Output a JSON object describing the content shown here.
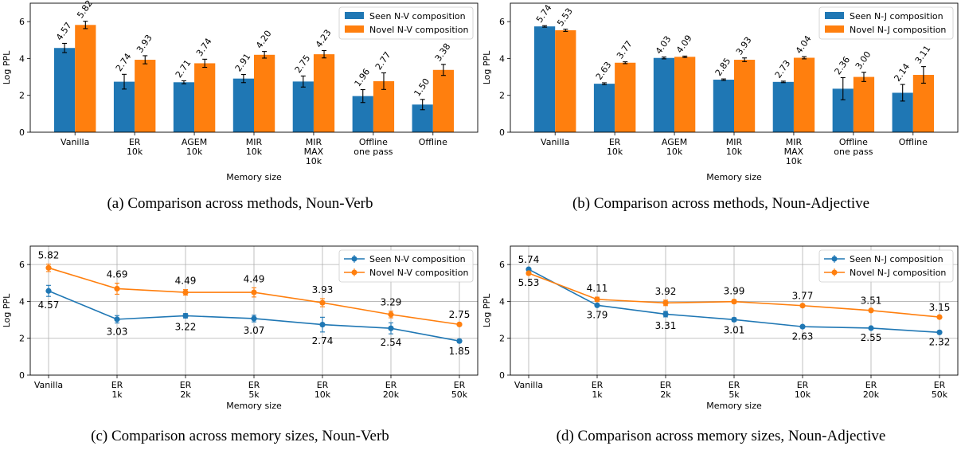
{
  "captions": [
    "(a) Comparison across methods, Noun-Verb",
    "(b) Comparison across methods, Noun-Adjective",
    "(c) Comparison across memory sizes, Noun-Verb",
    "(d) Comparison across memory sizes, Noun-Adjective"
  ],
  "colors": {
    "seen": "#1f77b4",
    "novel": "#ff7f0e"
  },
  "chart_data": [
    {
      "type": "bar",
      "panel": "a",
      "categories": [
        "Vanilla",
        "ER\n10k",
        "AGEM\n10k",
        "MIR\n10k",
        "MIR\nMAX\n10k",
        "Offline\none pass",
        "Offline"
      ],
      "xlabel": "Memory size",
      "ylabel": "Log PPL",
      "ylim": [
        0,
        7
      ],
      "yticks": [
        0,
        2,
        4,
        6
      ],
      "legend_position": "top-right",
      "series": [
        {
          "name": "Seen N-V composition",
          "values": [
            4.57,
            2.74,
            2.71,
            2.91,
            2.75,
            1.96,
            1.5
          ],
          "errors": [
            0.25,
            0.4,
            0.08,
            0.22,
            0.3,
            0.35,
            0.28
          ],
          "labels": [
            "4.57",
            "2.74",
            "2.71",
            "2.91",
            "2.75",
            "1.96",
            "1.50"
          ]
        },
        {
          "name": "Novel N-V composition",
          "values": [
            5.82,
            3.93,
            3.74,
            4.2,
            4.23,
            2.77,
            3.38
          ],
          "errors": [
            0.2,
            0.22,
            0.22,
            0.18,
            0.2,
            0.45,
            0.3
          ],
          "labels": [
            "5.82",
            "3.93",
            "3.74",
            "4.20",
            "4.23",
            "2.77",
            "3.38"
          ]
        }
      ]
    },
    {
      "type": "bar",
      "panel": "b",
      "categories": [
        "Vanilla",
        "ER\n10k",
        "AGEM\n10k",
        "MIR\n10k",
        "MIR\nMAX\n10k",
        "Offline\none pass",
        "Offline"
      ],
      "xlabel": "Memory size",
      "ylabel": "Log PPL",
      "ylim": [
        0,
        7
      ],
      "yticks": [
        0,
        2,
        4,
        6
      ],
      "legend_position": "top-right",
      "series": [
        {
          "name": "Seen N-J composition",
          "values": [
            5.74,
            2.63,
            4.03,
            2.85,
            2.73,
            2.36,
            2.14
          ],
          "errors": [
            0.04,
            0.05,
            0.05,
            0.04,
            0.04,
            0.6,
            0.45
          ],
          "labels": [
            "5.74",
            "2.63",
            "4.03",
            "2.85",
            "2.73",
            "2.36",
            "2.14"
          ]
        },
        {
          "name": "Novel N-J composition",
          "values": [
            5.53,
            3.77,
            4.09,
            3.93,
            4.04,
            3.0,
            3.11
          ],
          "errors": [
            0.06,
            0.05,
            0.04,
            0.1,
            0.06,
            0.25,
            0.45
          ],
          "labels": [
            "5.53",
            "3.77",
            "4.09",
            "3.93",
            "4.04",
            "3.00",
            "3.11"
          ]
        }
      ]
    },
    {
      "type": "line",
      "panel": "c",
      "categories": [
        "Vanilla",
        "ER\n1k",
        "ER\n2k",
        "ER\n5k",
        "ER\n10k",
        "ER\n20k",
        "ER\n50k"
      ],
      "xlabel": "Memory size",
      "ylabel": "Log PPL",
      "ylim": [
        0,
        7
      ],
      "yticks": [
        0,
        2,
        4,
        6
      ],
      "grid": true,
      "legend_position": "top-right",
      "series": [
        {
          "name": "Seen N-V composition",
          "values": [
            4.57,
            3.03,
            3.22,
            3.07,
            2.74,
            2.54,
            1.85
          ],
          "errors": [
            0.3,
            0.2,
            0.12,
            0.18,
            0.4,
            0.3,
            0.08
          ],
          "labels": [
            "4.57",
            "3.03",
            "3.22",
            "3.07",
            "2.74",
            "2.54",
            "1.85"
          ],
          "label_side": "below"
        },
        {
          "name": "Novel N-V composition",
          "values": [
            5.82,
            4.69,
            4.49,
            4.49,
            3.93,
            3.29,
            2.75
          ],
          "errors": [
            0.2,
            0.3,
            0.15,
            0.25,
            0.22,
            0.18,
            0.05
          ],
          "labels": [
            "5.82",
            "4.69",
            "4.49",
            "4.49",
            "3.93",
            "3.29",
            "2.75"
          ],
          "label_side": "above"
        }
      ]
    },
    {
      "type": "line",
      "panel": "d",
      "categories": [
        "Vanilla",
        "ER\n1k",
        "ER\n2k",
        "ER\n5k",
        "ER\n10k",
        "ER\n20k",
        "ER\n50k"
      ],
      "xlabel": "Memory size",
      "ylabel": "Log PPL",
      "ylim": [
        0,
        7
      ],
      "yticks": [
        0,
        2,
        4,
        6
      ],
      "grid": true,
      "legend_position": "top-right",
      "series": [
        {
          "name": "Seen N-J composition",
          "values": [
            5.74,
            3.79,
            3.31,
            3.01,
            2.63,
            2.55,
            2.32
          ],
          "errors": [
            0.05,
            0.05,
            0.15,
            0.1,
            0.05,
            0.05,
            0.05
          ],
          "labels": [
            "5.74",
            "3.79",
            "3.31",
            "3.01",
            "2.63",
            "2.55",
            "2.32"
          ],
          "label_side": "mixed"
        },
        {
          "name": "Novel N-J composition",
          "values": [
            5.53,
            4.11,
            3.92,
            3.99,
            3.77,
            3.51,
            3.15
          ],
          "errors": [
            0.05,
            0.12,
            0.15,
            0.1,
            0.05,
            0.05,
            0.05
          ],
          "labels": [
            "5.53",
            "4.11",
            "3.92",
            "3.99",
            "3.77",
            "3.51",
            "3.15"
          ],
          "label_side": "mixed"
        }
      ]
    }
  ]
}
